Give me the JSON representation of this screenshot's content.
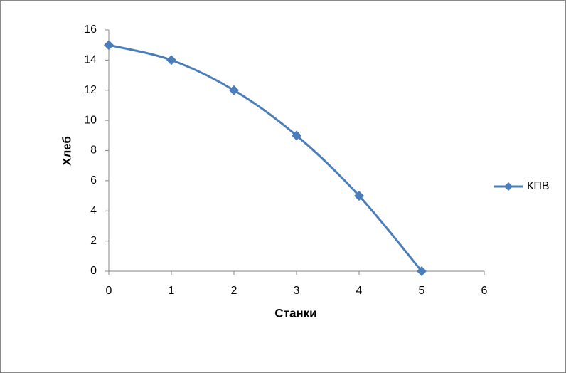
{
  "chart_data": {
    "type": "scatter",
    "x_label": "Станки",
    "y_label": "Хлеб",
    "series": [
      {
        "name": "КПВ",
        "color": "#4a7ebb",
        "x": [
          0,
          1,
          2,
          3,
          4,
          5
        ],
        "values": [
          15,
          14,
          12,
          9,
          5,
          0
        ]
      }
    ],
    "xlim": [
      0,
      6
    ],
    "xticks": [
      0,
      1,
      2,
      3,
      4,
      5,
      6
    ],
    "ylim": [
      0,
      16
    ],
    "yticks": [
      0,
      2,
      4,
      6,
      8,
      10,
      12,
      14,
      16
    ],
    "grid": false,
    "smooth": true,
    "legend": "right"
  }
}
